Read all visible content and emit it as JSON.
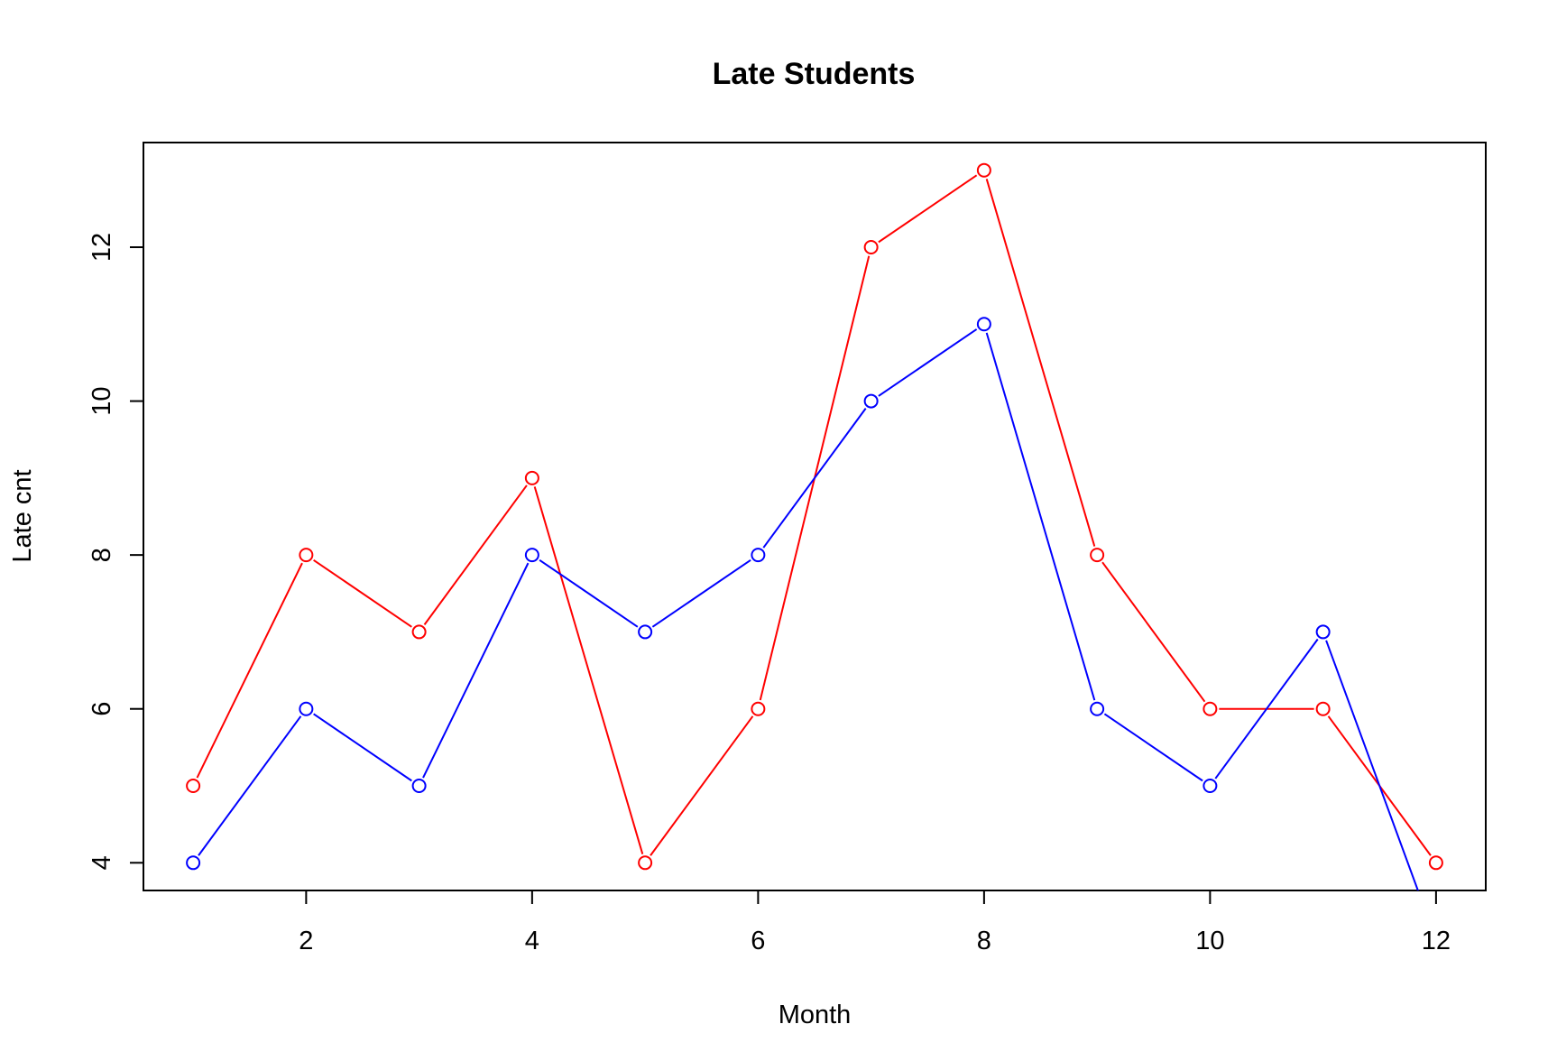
{
  "chart_data": {
    "type": "line",
    "title": "Late Students",
    "xlabel": "Month",
    "ylabel": "Late cnt",
    "x": [
      1,
      2,
      3,
      4,
      5,
      6,
      7,
      8,
      9,
      10,
      11,
      12
    ],
    "xlim": [
      0.56,
      12.44
    ],
    "ylim": [
      3.64,
      13.36
    ],
    "xticks": [
      2,
      4,
      6,
      8,
      10,
      12
    ],
    "yticks": [
      4,
      6,
      8,
      10,
      12
    ],
    "grid": false,
    "legend": "none",
    "marker": "open-circle",
    "series": [
      {
        "color": "#ff0000",
        "values": [
          5,
          8,
          7,
          9,
          4,
          6,
          12,
          13,
          8,
          6,
          6,
          4
        ]
      },
      {
        "color": "#0000ff",
        "values": [
          4,
          6,
          5,
          8,
          7,
          8,
          10,
          11,
          6,
          5,
          7,
          3
        ]
      }
    ]
  }
}
